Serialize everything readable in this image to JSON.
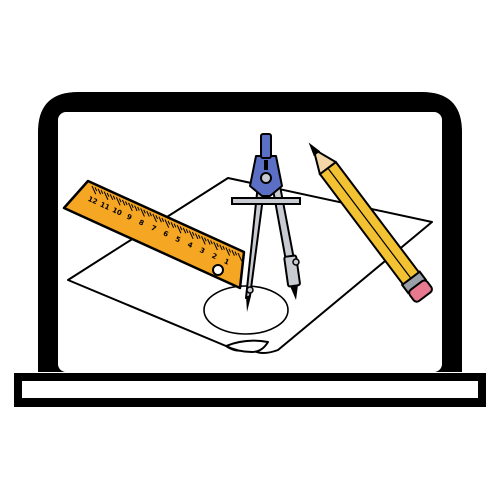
{
  "illustration": {
    "subject": "laptop-with-technical-drawing",
    "colors": {
      "outline": "#000000",
      "screen": "#ffffff",
      "ruler": "#f5a623",
      "compass_body": "#c8ccd2",
      "compass_accent": "#5b6fc4",
      "pencil_body": "#f2c232",
      "pencil_eraser": "#e87a90",
      "pencil_band": "#9aa0a8",
      "pencil_wood": "#f3d7a6",
      "paper": "#ffffff"
    },
    "ruler": {
      "labels": [
        "12",
        "11",
        "10",
        "9",
        "8",
        "7",
        "6",
        "5",
        "4",
        "3",
        "2",
        "1"
      ]
    }
  }
}
